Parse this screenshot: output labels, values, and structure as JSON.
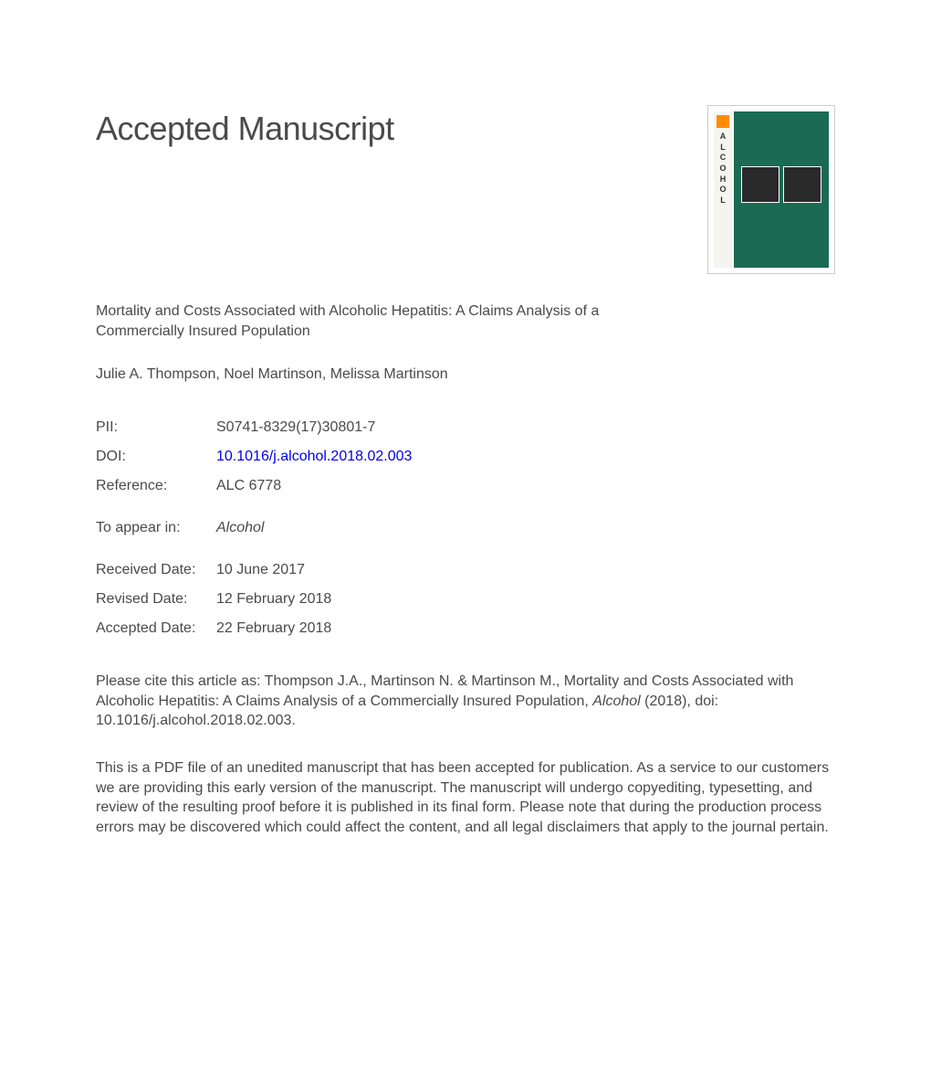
{
  "heading": "Accepted Manuscript",
  "title": "Mortality and Costs Associated with Alcoholic Hepatitis: A Claims Analysis of a Commercially Insured Population",
  "authors": "Julie A. Thompson, Noel Martinson, Melissa Martinson",
  "journal_spine": {
    "letters": [
      "A",
      "L",
      "C",
      "O",
      "H",
      "O",
      "L"
    ]
  },
  "meta": {
    "pii": {
      "label": "PII:",
      "value": "S0741-8329(17)30801-7"
    },
    "doi": {
      "label": "DOI:",
      "value": "10.1016/j.alcohol.2018.02.003"
    },
    "reference": {
      "label": "Reference:",
      "value": "ALC 6778"
    },
    "appear": {
      "label": "To appear in:",
      "value": "Alcohol"
    },
    "received": {
      "label": "Received Date:",
      "value": "10 June 2017"
    },
    "revised": {
      "label": "Revised Date:",
      "value": "12 February 2018"
    },
    "accepted": {
      "label": "Accepted Date:",
      "value": "22 February 2018"
    }
  },
  "citation": {
    "prefix": "Please cite this article as: Thompson J.A., Martinson N. & Martinson M., Mortality and Costs Associated with Alcoholic Hepatitis: A Claims Analysis of a Commercially Insured Population, ",
    "journal": "Alcohol",
    "suffix": " (2018), doi: 10.1016/j.alcohol.2018.02.003."
  },
  "disclaimer": "This is a PDF file of an unedited manuscript that has been accepted for publication. As a service to our customers we are providing this early version of the manuscript. The manuscript will undergo copyediting, typesetting, and review of the resulting proof before it is published in its final form. Please note that during the production process errors may be discovered which could affect the content, and all legal disclaimers that apply to the journal pertain."
}
